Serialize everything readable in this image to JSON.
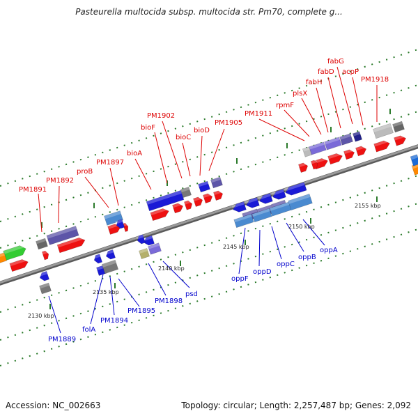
{
  "title": "Pasteurella multocida subsp. multocida str. Pm70, complete g...",
  "footer": {
    "accession": "Accession: NC_002663",
    "info": "Topology: circular; Length: 2,257,487 bp; Genes: 2,092"
  },
  "colors": {
    "forward_label": "#dd0000",
    "reverse_label": "#0000cc",
    "backbone": "#888888",
    "tick": "#2a7a2a"
  },
  "scale_labels": [
    "2130 kbp",
    "2135 kbp",
    "2140 kbp",
    "2145 kbp",
    "2150 kbp",
    "2155 kbp"
  ],
  "forward_labels": [
    "PM1891",
    "PM1892",
    "proB",
    "PM1897",
    "bioA",
    "bioF",
    "PM1902",
    "bioC",
    "bioD",
    "PM1905",
    "PM1911",
    "rpmF",
    "plsX",
    "fabH",
    "fabD",
    "fabG",
    "acpP",
    "PM1918"
  ],
  "reverse_labels": [
    "PM1889",
    "folA",
    "PM1894",
    "PM1895",
    "PM1898",
    "psd",
    "oppF",
    "oppD",
    "oppC",
    "oppB",
    "oppA"
  ]
}
